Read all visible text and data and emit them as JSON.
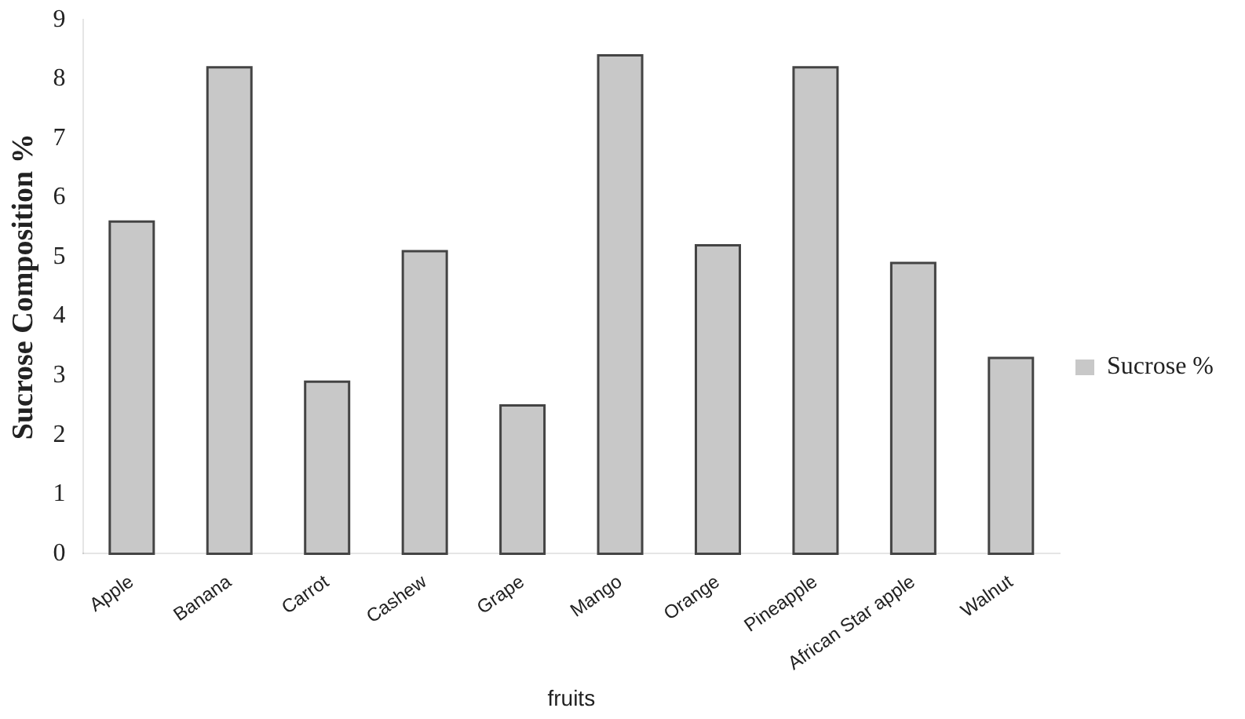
{
  "chart_data": {
    "type": "bar",
    "xlabel": "fruits",
    "ylabel": "Sucrose Composition %",
    "categories": [
      "Apple",
      "Banana",
      "Carrot",
      "Cashew",
      "Grape",
      "Mango",
      "Orange",
      "Pineapple",
      "African Star apple",
      "Walnut"
    ],
    "series": [
      {
        "name": "Sucrose %",
        "color": "#c8c8c8",
        "values": [
          5.6,
          8.2,
          2.9,
          5.1,
          2.5,
          8.4,
          5.2,
          8.2,
          4.9,
          3.3
        ]
      }
    ],
    "ylim": [
      0,
      9
    ],
    "yticks": [
      0,
      1,
      2,
      3,
      4,
      5,
      6,
      7,
      8,
      9
    ],
    "grid": false,
    "legend": "right"
  }
}
